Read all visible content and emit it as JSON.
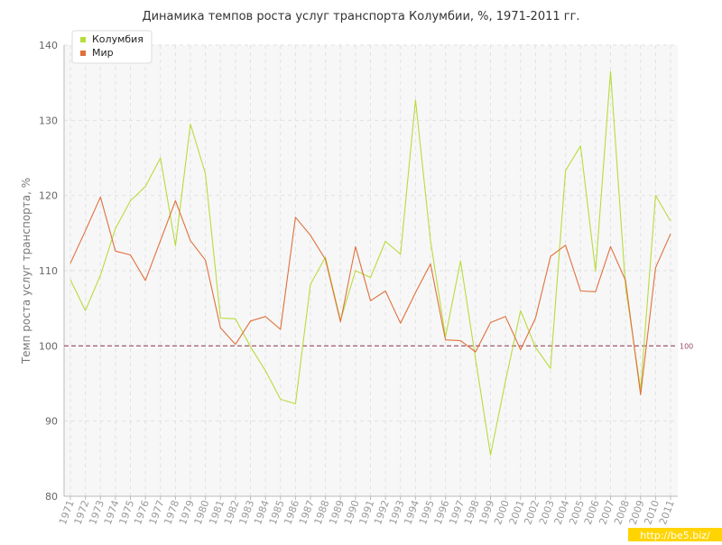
{
  "chart_data": {
    "type": "line",
    "title": "Динамика темпов роста услуг транспорта Колумбии, %, 1971-2011 гг.",
    "ylabel": "Темп роста услуг транспорта, %",
    "xlabel": "",
    "ylim": [
      80,
      140
    ],
    "yticks": [
      80,
      90,
      100,
      110,
      120,
      130,
      140
    ],
    "grid": true,
    "legend": "top-left",
    "categories": [
      "1971",
      "1972",
      "1973",
      "1974",
      "1975",
      "1976",
      "1977",
      "1978",
      "1979",
      "1980",
      "1981",
      "1982",
      "1983",
      "1984",
      "1985",
      "1986",
      "1987",
      "1988",
      "1989",
      "1990",
      "1991",
      "1992",
      "1993",
      "1994",
      "1995",
      "1996",
      "1997",
      "1998",
      "1999",
      "2000",
      "2001",
      "2002",
      "2003",
      "2004",
      "2005",
      "2006",
      "2007",
      "2008",
      "2009",
      "2010",
      "2011"
    ],
    "series": [
      {
        "name": "Колумбия",
        "color": "#b8dc3c",
        "values": [
          108.8,
          104.7,
          109.4,
          115.6,
          119.3,
          121.2,
          125.0,
          113.3,
          129.5,
          122.9,
          103.7,
          103.6,
          99.9,
          96.7,
          92.9,
          92.3,
          108.2,
          111.8,
          103.4,
          110.0,
          109.1,
          113.9,
          112.2,
          132.7,
          114.0,
          101.2,
          111.3,
          98.3,
          85.5,
          95.3,
          104.7,
          99.8,
          97.0,
          123.3,
          126.6,
          109.9,
          136.5,
          107.9,
          94.2,
          120.0,
          116.6
        ]
      },
      {
        "name": "Мир",
        "color": "#e0703c",
        "values": [
          111.0,
          115.3,
          119.8,
          112.6,
          112.1,
          108.7,
          114.0,
          119.3,
          114.0,
          111.4,
          102.4,
          100.2,
          103.3,
          103.9,
          102.2,
          117.1,
          114.7,
          111.5,
          103.2,
          113.2,
          106.0,
          107.3,
          103.0,
          107.1,
          110.9,
          100.8,
          100.7,
          99.2,
          103.1,
          103.9,
          99.5,
          103.7,
          111.9,
          113.4,
          107.3,
          107.2,
          113.2,
          108.7,
          93.5,
          110.4,
          114.9
        ]
      }
    ],
    "reference_line": {
      "value": 100,
      "label": "100",
      "color": "#9b4a5e"
    }
  },
  "watermark": "http://be5.biz/"
}
